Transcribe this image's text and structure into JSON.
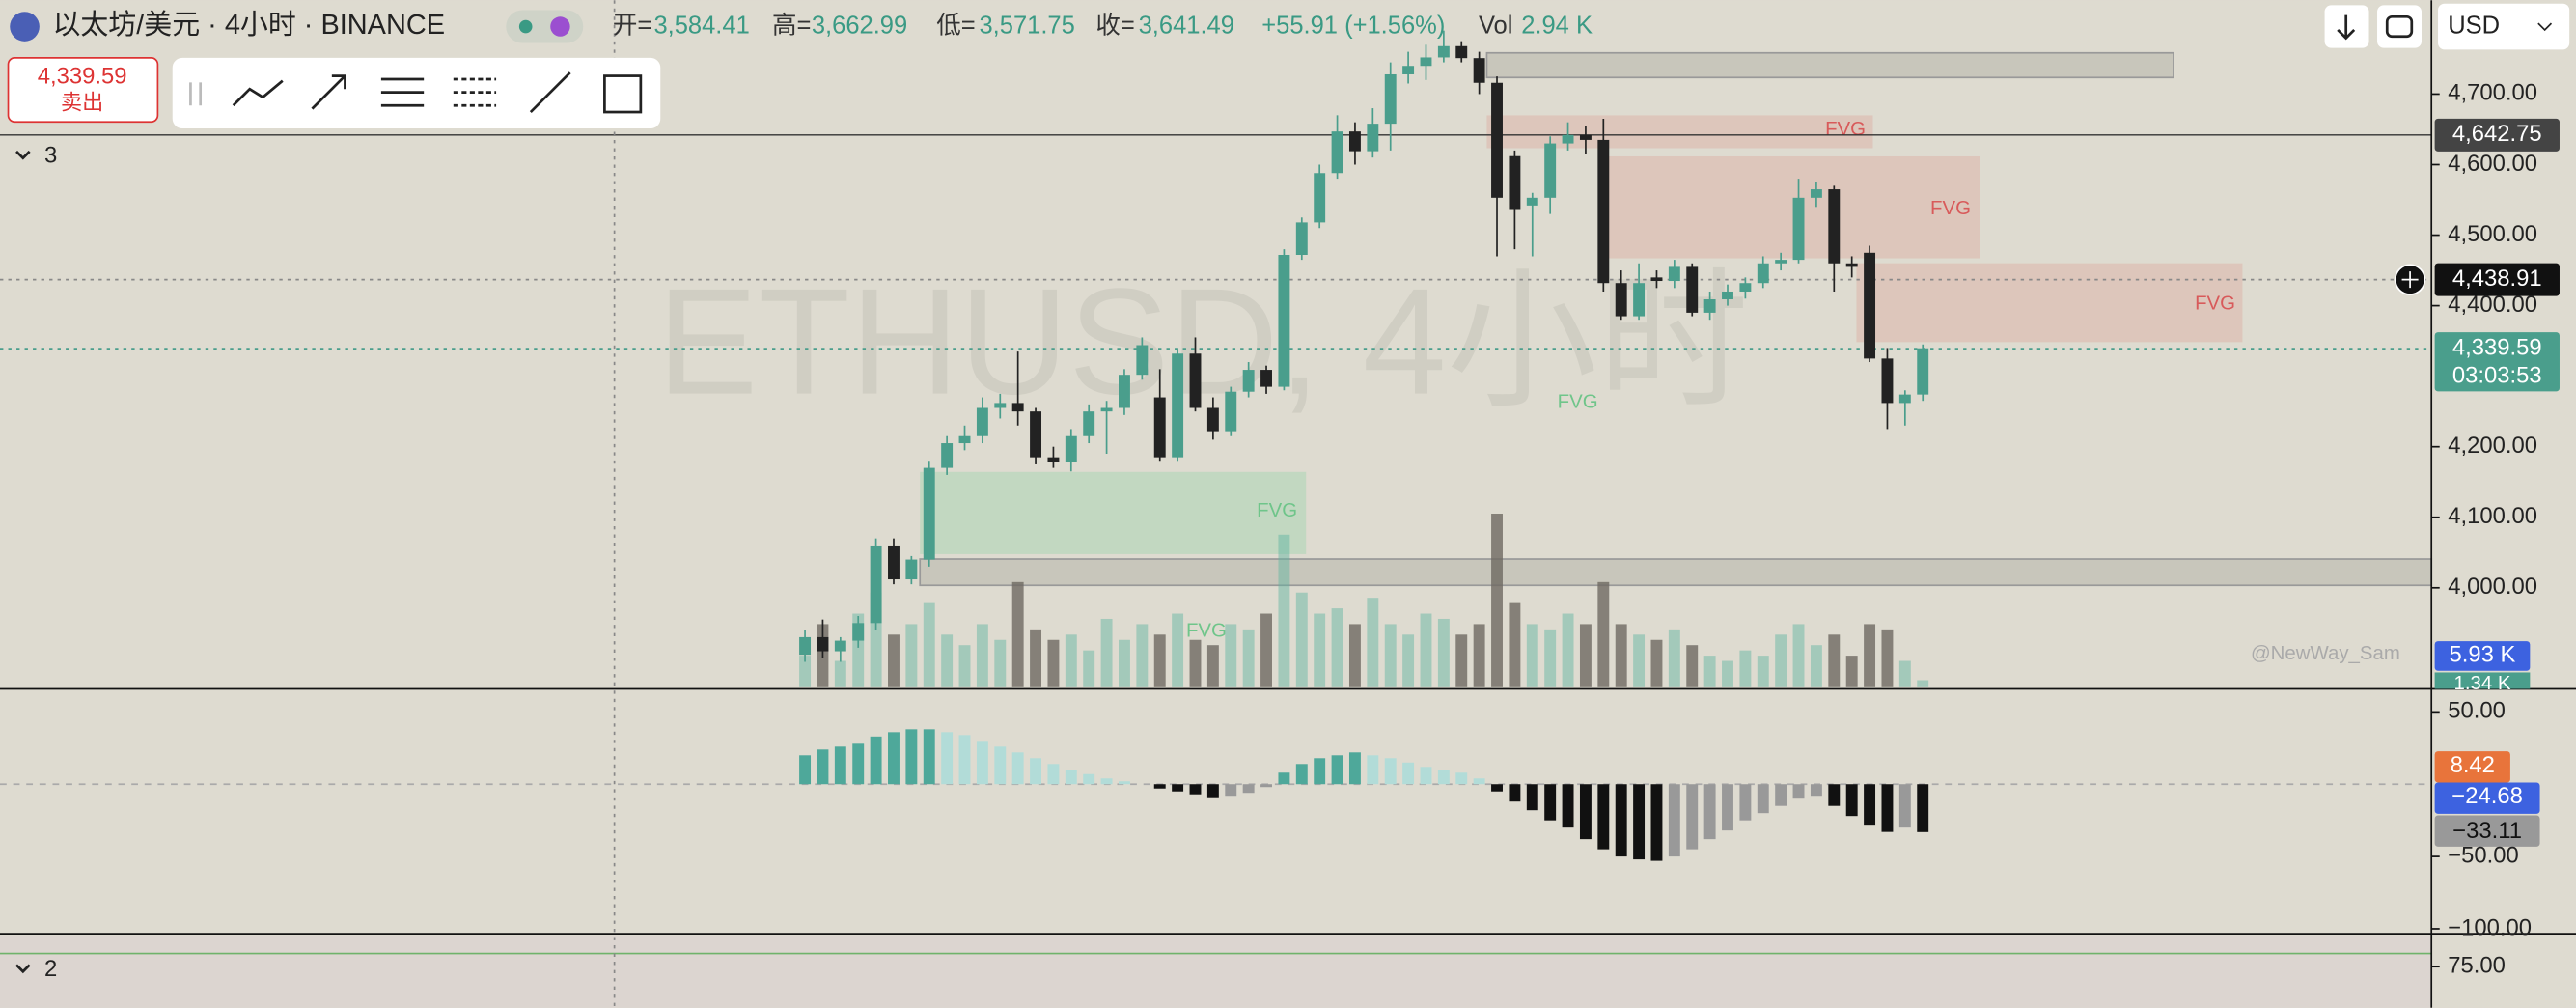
{
  "header": {
    "symbol": "以太坊/美元 · 4小时 · BINANCE",
    "open_label": "开=",
    "open": "3,584.41",
    "high_label": "高=",
    "high": "3,662.99",
    "low_label": "低=",
    "low": "3,571.75",
    "close_label": "收=",
    "close": "3,641.49",
    "change": "+55.91 (+1.56%)",
    "vol_label": "Vol",
    "vol": "2.94 K"
  },
  "sell_button": {
    "price": "4,339.59",
    "label": "卖出"
  },
  "currency": "USD",
  "pane_labels": [
    "3",
    "2"
  ],
  "watermark": "ETHUSD, 4小时",
  "fvg_labels": [
    "FVG",
    "FVG",
    "FVG",
    "FVG",
    "FVG",
    "FVG"
  ],
  "credit": "@NewWay_Sam",
  "price_badges": {
    "line": "4,642.75",
    "crosshair": "4,438.91",
    "last": "4,339.59",
    "countdown": "03:03:53"
  },
  "volume_badges": {
    "ma": "5.93 K",
    "last": "1.34 K"
  },
  "macd_badges": {
    "signal": "8.42",
    "macd": "−24.68",
    "histogram": "−33.11"
  },
  "chart_data": {
    "type": "candlestick",
    "open": [
      3905,
      3930,
      3910,
      3925,
      3950,
      4060,
      4012,
      4040,
      4170,
      4205,
      4215,
      4255,
      4262,
      4250,
      4185,
      4178,
      4215,
      4250,
      4255,
      4302,
      4270,
      4185,
      4332,
      4255,
      4222,
      4278,
      4309,
      4285,
      4472,
      4518,
      4588,
      4647,
      4619,
      4658,
      4728,
      4740,
      4752,
      4768,
      4751,
      4716,
      4612,
      4542,
      4553,
      4630,
      4642,
      4635,
      4432,
      4385,
      4440,
      4435,
      4455,
      4390,
      4409,
      4420,
      4432,
      4460,
      4465,
      4553,
      4565,
      4460,
      4475,
      4325,
      4262,
      4274
    ],
    "high": [
      3940,
      3955,
      3930,
      3960,
      4070,
      4070,
      4045,
      4180,
      4215,
      4230,
      4270,
      4275,
      4335,
      4255,
      4200,
      4225,
      4260,
      4265,
      4310,
      4355,
      4310,
      4340,
      4355,
      4270,
      4285,
      4320,
      4315,
      4480,
      4525,
      4600,
      4670,
      4660,
      4680,
      4745,
      4760,
      4770,
      4790,
      4775,
      4760,
      4725,
      4620,
      4560,
      4640,
      4660,
      4655,
      4665,
      4450,
      4460,
      4450,
      4465,
      4460,
      4420,
      4430,
      4440,
      4470,
      4475,
      4580,
      4575,
      4570,
      4470,
      4485,
      4340,
      4280,
      4345
    ],
    "low": [
      3895,
      3900,
      3895,
      3915,
      3940,
      4005,
      4005,
      4030,
      4160,
      4195,
      4205,
      4240,
      4230,
      4175,
      4170,
      4165,
      4205,
      4190,
      4245,
      4295,
      4180,
      4180,
      4250,
      4210,
      4215,
      4270,
      4275,
      4280,
      4465,
      4510,
      4580,
      4600,
      4610,
      4620,
      4715,
      4720,
      4745,
      4745,
      4700,
      4470,
      4480,
      4470,
      4530,
      4620,
      4615,
      4420,
      4380,
      4380,
      4425,
      4425,
      4385,
      4380,
      4400,
      4410,
      4425,
      4450,
      4460,
      4540,
      4420,
      4440,
      4320,
      4225,
      4230,
      4265
    ],
    "close": [
      3930,
      3910,
      3925,
      3950,
      4060,
      4012,
      4040,
      4170,
      4205,
      4215,
      4255,
      4262,
      4250,
      4185,
      4178,
      4215,
      4250,
      4255,
      4302,
      4344,
      4185,
      4332,
      4255,
      4222,
      4278,
      4309,
      4285,
      4472,
      4518,
      4588,
      4647,
      4619,
      4658,
      4728,
      4740,
      4752,
      4768,
      4751,
      4716,
      4553,
      4537,
      4553,
      4630,
      4642,
      4635,
      4432,
      4385,
      4432,
      4435,
      4455,
      4390,
      4409,
      4420,
      4432,
      4460,
      4465,
      4553,
      4565,
      4460,
      4455,
      4325,
      4262,
      4274,
      4339.59
    ],
    "up_color": "#4a9e8c",
    "down_color": "#222222",
    "ylim": [
      3859,
      4833
    ],
    "yticks": [
      {
        "value": 4700,
        "label": "4,700.00"
      },
      {
        "value": 4600,
        "label": "4,600.00"
      },
      {
        "value": 4500,
        "label": "4,500.00"
      },
      {
        "value": 4400,
        "label": "4,400.00"
      },
      {
        "value": 4200,
        "label": "4,200.00"
      },
      {
        "value": 4100,
        "label": "4,100.00"
      },
      {
        "value": 4000,
        "label": "4,000.00"
      }
    ],
    "volume": [
      6,
      12,
      5,
      14,
      18,
      10,
      12,
      16,
      10,
      8,
      12,
      9,
      20,
      11,
      9,
      10,
      7,
      13,
      9,
      12,
      10,
      14,
      9,
      8,
      12,
      11,
      14,
      29,
      18,
      14,
      15,
      12,
      17,
      12,
      10,
      14,
      13,
      10,
      12,
      33,
      16,
      12,
      11,
      14,
      12,
      20,
      12,
      10,
      9,
      11,
      8,
      6,
      5,
      7,
      6,
      10,
      12,
      8,
      10,
      6,
      12,
      11,
      5,
      1.34
    ],
    "volume_ylim": [
      0,
      130.6
    ],
    "macd_histogram": [
      20,
      24,
      26,
      28,
      33,
      36,
      38,
      38,
      36,
      34,
      30,
      26,
      22,
      18,
      14,
      10,
      7,
      4,
      2,
      0,
      -3,
      -5,
      -7,
      -9,
      -8,
      -6,
      -2,
      8,
      14,
      18,
      20,
      22,
      20,
      18,
      15,
      12,
      10,
      8,
      4,
      -5,
      -12,
      -18,
      -25,
      -30,
      -38,
      -45,
      -50,
      -52,
      -53,
      -50,
      -45,
      -38,
      -32,
      -25,
      -20,
      -15,
      -10,
      -8,
      -15,
      -22,
      -28,
      -33,
      -30,
      -33.11
    ],
    "macd_ylim": [
      -102.3,
      61.4
    ],
    "macd_yticks": [
      {
        "value": 50,
        "label": "50.00"
      },
      {
        "value": -50,
        "label": "−50.00"
      },
      {
        "value": -100,
        "label": "−100.00"
      }
    ],
    "rsi_ylim": [
      66.2,
      81.7
    ],
    "rsi_yticks": [
      {
        "value": 75,
        "label": "75.00"
      }
    ]
  }
}
